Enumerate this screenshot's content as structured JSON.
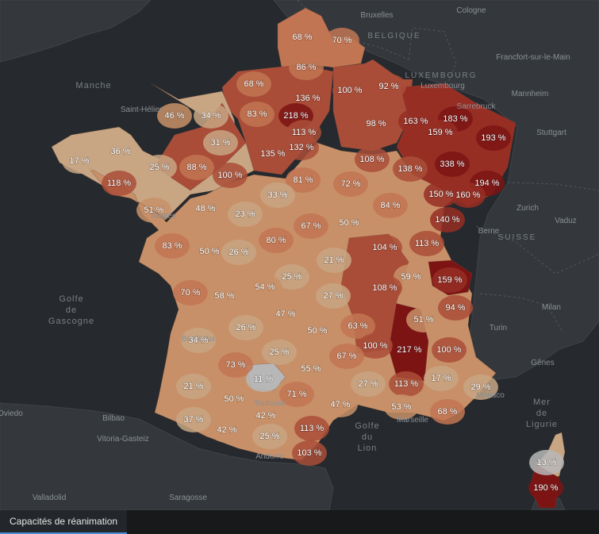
{
  "tab": {
    "label": "Capacités de réanimation"
  },
  "colors": {
    "sea": "#26292d",
    "neighbor_land": "#34383c",
    "scale": [
      "#b7b7b7",
      "#c8a684",
      "#c89068",
      "#c27552",
      "#aa4d38",
      "#962e24",
      "#7d1414"
    ],
    "active_tab_accent": "#4a90d9"
  },
  "places": [
    {
      "name": "Bruxelles",
      "type": "city"
    },
    {
      "name": "Cologne",
      "type": "city"
    },
    {
      "name": "BELGIQUE",
      "type": "country"
    },
    {
      "name": "LUXEMBOURG",
      "type": "country"
    },
    {
      "name": "Luxembourg",
      "type": "city"
    },
    {
      "name": "Francfort-sur-le-Main",
      "type": "city"
    },
    {
      "name": "Mannheim",
      "type": "city"
    },
    {
      "name": "Sarrebruck",
      "type": "city"
    },
    {
      "name": "Stuttgart",
      "type": "city"
    },
    {
      "name": "Zurich",
      "type": "city"
    },
    {
      "name": "Vaduz",
      "type": "city"
    },
    {
      "name": "Berne",
      "type": "city"
    },
    {
      "name": "SUISSE",
      "type": "country"
    },
    {
      "name": "Milan",
      "type": "city"
    },
    {
      "name": "Turin",
      "type": "city"
    },
    {
      "name": "Gênes",
      "type": "city"
    },
    {
      "name": "Monaco",
      "type": "city"
    },
    {
      "name": "Marseille",
      "type": "city"
    },
    {
      "name": "Toulouse",
      "type": "city"
    },
    {
      "name": "Bordeaux",
      "type": "city"
    },
    {
      "name": "Nantes",
      "type": "city"
    },
    {
      "name": "Saint-Hélier",
      "type": "city"
    },
    {
      "name": "Manche",
      "type": "sea"
    },
    {
      "name": "Golfe de Gascogne",
      "type": "sea"
    },
    {
      "name": "Golfe du Lion",
      "type": "sea"
    },
    {
      "name": "Mer de Ligurie",
      "type": "sea"
    },
    {
      "name": "Oviedo",
      "type": "city"
    },
    {
      "name": "Bilbao",
      "type": "city"
    },
    {
      "name": "Vitoria-Gasteiz",
      "type": "city"
    },
    {
      "name": "Andorre",
      "type": "city"
    },
    {
      "name": "Valladolid",
      "type": "city"
    },
    {
      "name": "Saragosse",
      "type": "city"
    }
  ],
  "departments": [
    {
      "label": "68 %",
      "value": 68
    },
    {
      "label": "70 %",
      "value": 70
    },
    {
      "label": "86 %",
      "value": 86
    },
    {
      "label": "92 %",
      "value": 92
    },
    {
      "label": "68 %",
      "value": 68
    },
    {
      "label": "136 %",
      "value": 136
    },
    {
      "label": "100 %",
      "value": 100
    },
    {
      "label": "46 %",
      "value": 46
    },
    {
      "label": "34 %",
      "value": 34
    },
    {
      "label": "83 %",
      "value": 83
    },
    {
      "label": "218 %",
      "value": 218
    },
    {
      "label": "98 %",
      "value": 98
    },
    {
      "label": "163 %",
      "value": 163
    },
    {
      "label": "183 %",
      "value": 183
    },
    {
      "label": "159 %",
      "value": 159
    },
    {
      "label": "193 %",
      "value": 193
    },
    {
      "label": "113 %",
      "value": 113
    },
    {
      "label": "36 %",
      "value": 36
    },
    {
      "label": "31 %",
      "value": 31
    },
    {
      "label": "132 %",
      "value": 132
    },
    {
      "label": "135 %",
      "value": 135
    },
    {
      "label": "17 %",
      "value": 17
    },
    {
      "label": "25 %",
      "value": 25
    },
    {
      "label": "88 %",
      "value": 88
    },
    {
      "label": "100 %",
      "value": 100
    },
    {
      "label": "108 %",
      "value": 108
    },
    {
      "label": "138 %",
      "value": 138
    },
    {
      "label": "338 %",
      "value": 338
    },
    {
      "label": "118 %",
      "value": 118
    },
    {
      "label": "81 %",
      "value": 81
    },
    {
      "label": "72 %",
      "value": 72
    },
    {
      "label": "194 %",
      "value": 194
    },
    {
      "label": "150 %",
      "value": 150
    },
    {
      "label": "160 %",
      "value": 160
    },
    {
      "label": "33 %",
      "value": 33
    },
    {
      "label": "51 %",
      "value": 51
    },
    {
      "label": "48 %",
      "value": 48
    },
    {
      "label": "23 %",
      "value": 23
    },
    {
      "label": "84 %",
      "value": 84
    },
    {
      "label": "67 %",
      "value": 67
    },
    {
      "label": "50 %",
      "value": 50
    },
    {
      "label": "140 %",
      "value": 140
    },
    {
      "label": "80 %",
      "value": 80
    },
    {
      "label": "83 %",
      "value": 83
    },
    {
      "label": "50 %",
      "value": 50
    },
    {
      "label": "26 %",
      "value": 26
    },
    {
      "label": "104 %",
      "value": 104
    },
    {
      "label": "113 %",
      "value": 113
    },
    {
      "label": "21 %",
      "value": 21
    },
    {
      "label": "25 %",
      "value": 25
    },
    {
      "label": "59 %",
      "value": 59
    },
    {
      "label": "159 %",
      "value": 159
    },
    {
      "label": "54 %",
      "value": 54
    },
    {
      "label": "108 %",
      "value": 108
    },
    {
      "label": "70 %",
      "value": 70
    },
    {
      "label": "58 %",
      "value": 58
    },
    {
      "label": "27 %",
      "value": 27
    },
    {
      "label": "94 %",
      "value": 94
    },
    {
      "label": "47 %",
      "value": 47
    },
    {
      "label": "51 %",
      "value": 51
    },
    {
      "label": "26 %",
      "value": 26
    },
    {
      "label": "50 %",
      "value": 50
    },
    {
      "label": "63 %",
      "value": 63
    },
    {
      "label": "34 %",
      "value": 34
    },
    {
      "label": "100 %",
      "value": 100
    },
    {
      "label": "217 %",
      "value": 217
    },
    {
      "label": "100 %",
      "value": 100
    },
    {
      "label": "25 %",
      "value": 25
    },
    {
      "label": "67 %",
      "value": 67
    },
    {
      "label": "73 %",
      "value": 73
    },
    {
      "label": "55 %",
      "value": 55
    },
    {
      "label": "11 %",
      "value": 11
    },
    {
      "label": "17 %",
      "value": 17
    },
    {
      "label": "21 %",
      "value": 21
    },
    {
      "label": "27 %",
      "value": 27
    },
    {
      "label": "113 %",
      "value": 113
    },
    {
      "label": "29 %",
      "value": 29
    },
    {
      "label": "71 %",
      "value": 71
    },
    {
      "label": "50 %",
      "value": 50
    },
    {
      "label": "47 %",
      "value": 47
    },
    {
      "label": "53 %",
      "value": 53
    },
    {
      "label": "68 %",
      "value": 68
    },
    {
      "label": "37 %",
      "value": 37
    },
    {
      "label": "42 %",
      "value": 42
    },
    {
      "label": "42 %",
      "value": 42
    },
    {
      "label": "113 %",
      "value": 113
    },
    {
      "label": "25 %",
      "value": 25
    },
    {
      "label": "103 %",
      "value": 103
    },
    {
      "label": "13 %",
      "value": 13
    },
    {
      "label": "190 %",
      "value": 190
    }
  ]
}
